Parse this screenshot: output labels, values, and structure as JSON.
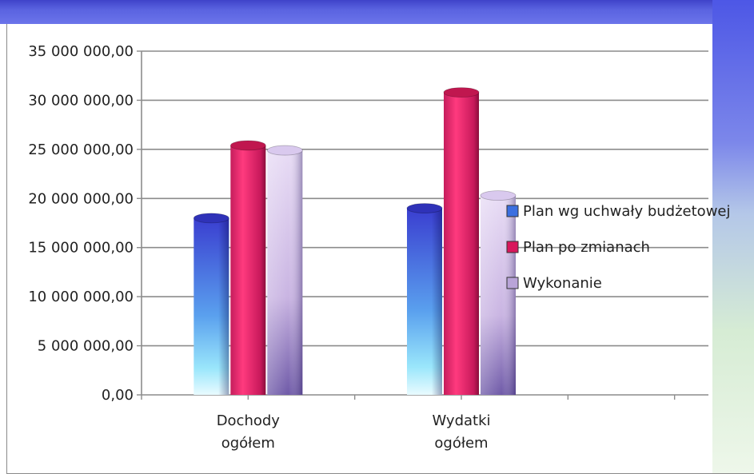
{
  "chart_data": {
    "type": "bar",
    "title": "",
    "xlabel": "",
    "ylabel": "",
    "categories": [
      [
        "Dochody",
        "ogółem"
      ],
      [
        "Wydatki",
        "ogółem"
      ],
      [
        "",
        ""
      ]
    ],
    "ylim": [
      0,
      35000000
    ],
    "yticks": [
      0,
      5000000,
      10000000,
      15000000,
      20000000,
      25000000,
      30000000,
      35000000
    ],
    "ytick_labels": [
      "0,00",
      "5 000 000,00",
      "10 000 000,00",
      "15 000 000,00",
      "20 000 000,00",
      "25 000 000,00",
      "30 000 000,00",
      "35 000 000,00"
    ],
    "grid": true,
    "legend_position": "right",
    "series": [
      {
        "name": "Plan wg uchwały budżetowej",
        "values": [
          18000000,
          19000000,
          null
        ],
        "color": "#3b5bd6"
      },
      {
        "name": "Plan po zmianach",
        "values": [
          25400000,
          30800000,
          null
        ],
        "color": "#e3246a"
      },
      {
        "name": "Wykonanie",
        "values": [
          24900000,
          20300000,
          null
        ],
        "color": "#c9b4e2"
      }
    ]
  }
}
